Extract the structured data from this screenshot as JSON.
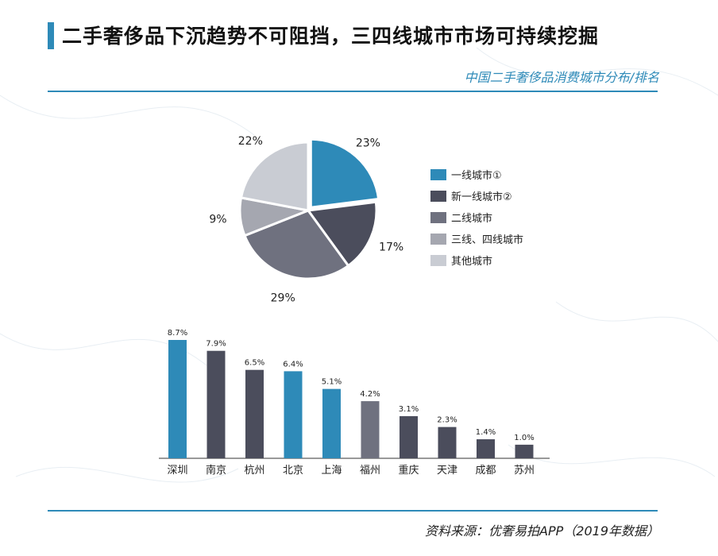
{
  "header": {
    "title": "二手奢侈品下沉趋势不可阻挡，三四线城市市场可持续挖掘",
    "subtitle": "中国二手奢侈品消费城市分布/排名"
  },
  "footer": {
    "source": "资料来源：优奢易拍APP（2019年数据）"
  },
  "colors": {
    "accent": "#2e8ab8",
    "dark": "#4b4d5c",
    "mid": "#6f717f",
    "light_mid": "#a5a7b0",
    "light": "#c9ccd3"
  },
  "chart_data": [
    {
      "type": "pie",
      "title": "",
      "slices": [
        {
          "label": "一线城市①",
          "value": 23,
          "display": "23%",
          "color": "#2e8ab8"
        },
        {
          "label": "新一线城市②",
          "value": 17,
          "display": "17%",
          "color": "#4b4d5c"
        },
        {
          "label": "二线城市",
          "value": 29,
          "display": "29%",
          "color": "#6f717f"
        },
        {
          "label": "三线、四线城市",
          "value": 9,
          "display": "9%",
          "color": "#a5a7b0"
        },
        {
          "label": "其他城市",
          "value": 22,
          "display": "22%",
          "color": "#c9ccd3"
        }
      ],
      "legend": "right"
    },
    {
      "type": "bar",
      "title": "",
      "categories": [
        "深圳",
        "南京",
        "杭州",
        "北京",
        "上海",
        "福州",
        "重庆",
        "天津",
        "成都",
        "苏州"
      ],
      "values": [
        8.7,
        7.9,
        6.5,
        6.4,
        5.1,
        4.2,
        3.1,
        2.3,
        1.4,
        1.0
      ],
      "labels": [
        "8.7%",
        "7.9%",
        "6.5%",
        "6.4%",
        "5.1%",
        "4.2%",
        "3.1%",
        "2.3%",
        "1.4%",
        "1.0%"
      ],
      "colors": [
        "#2e8ab8",
        "#4b4d5c",
        "#4b4d5c",
        "#2e8ab8",
        "#2e8ab8",
        "#6f717f",
        "#4b4d5c",
        "#4b4d5c",
        "#4b4d5c",
        "#4b4d5c"
      ],
      "xlabel": "",
      "ylabel": "",
      "ylim": [
        0,
        8.7
      ],
      "grid": false
    }
  ]
}
